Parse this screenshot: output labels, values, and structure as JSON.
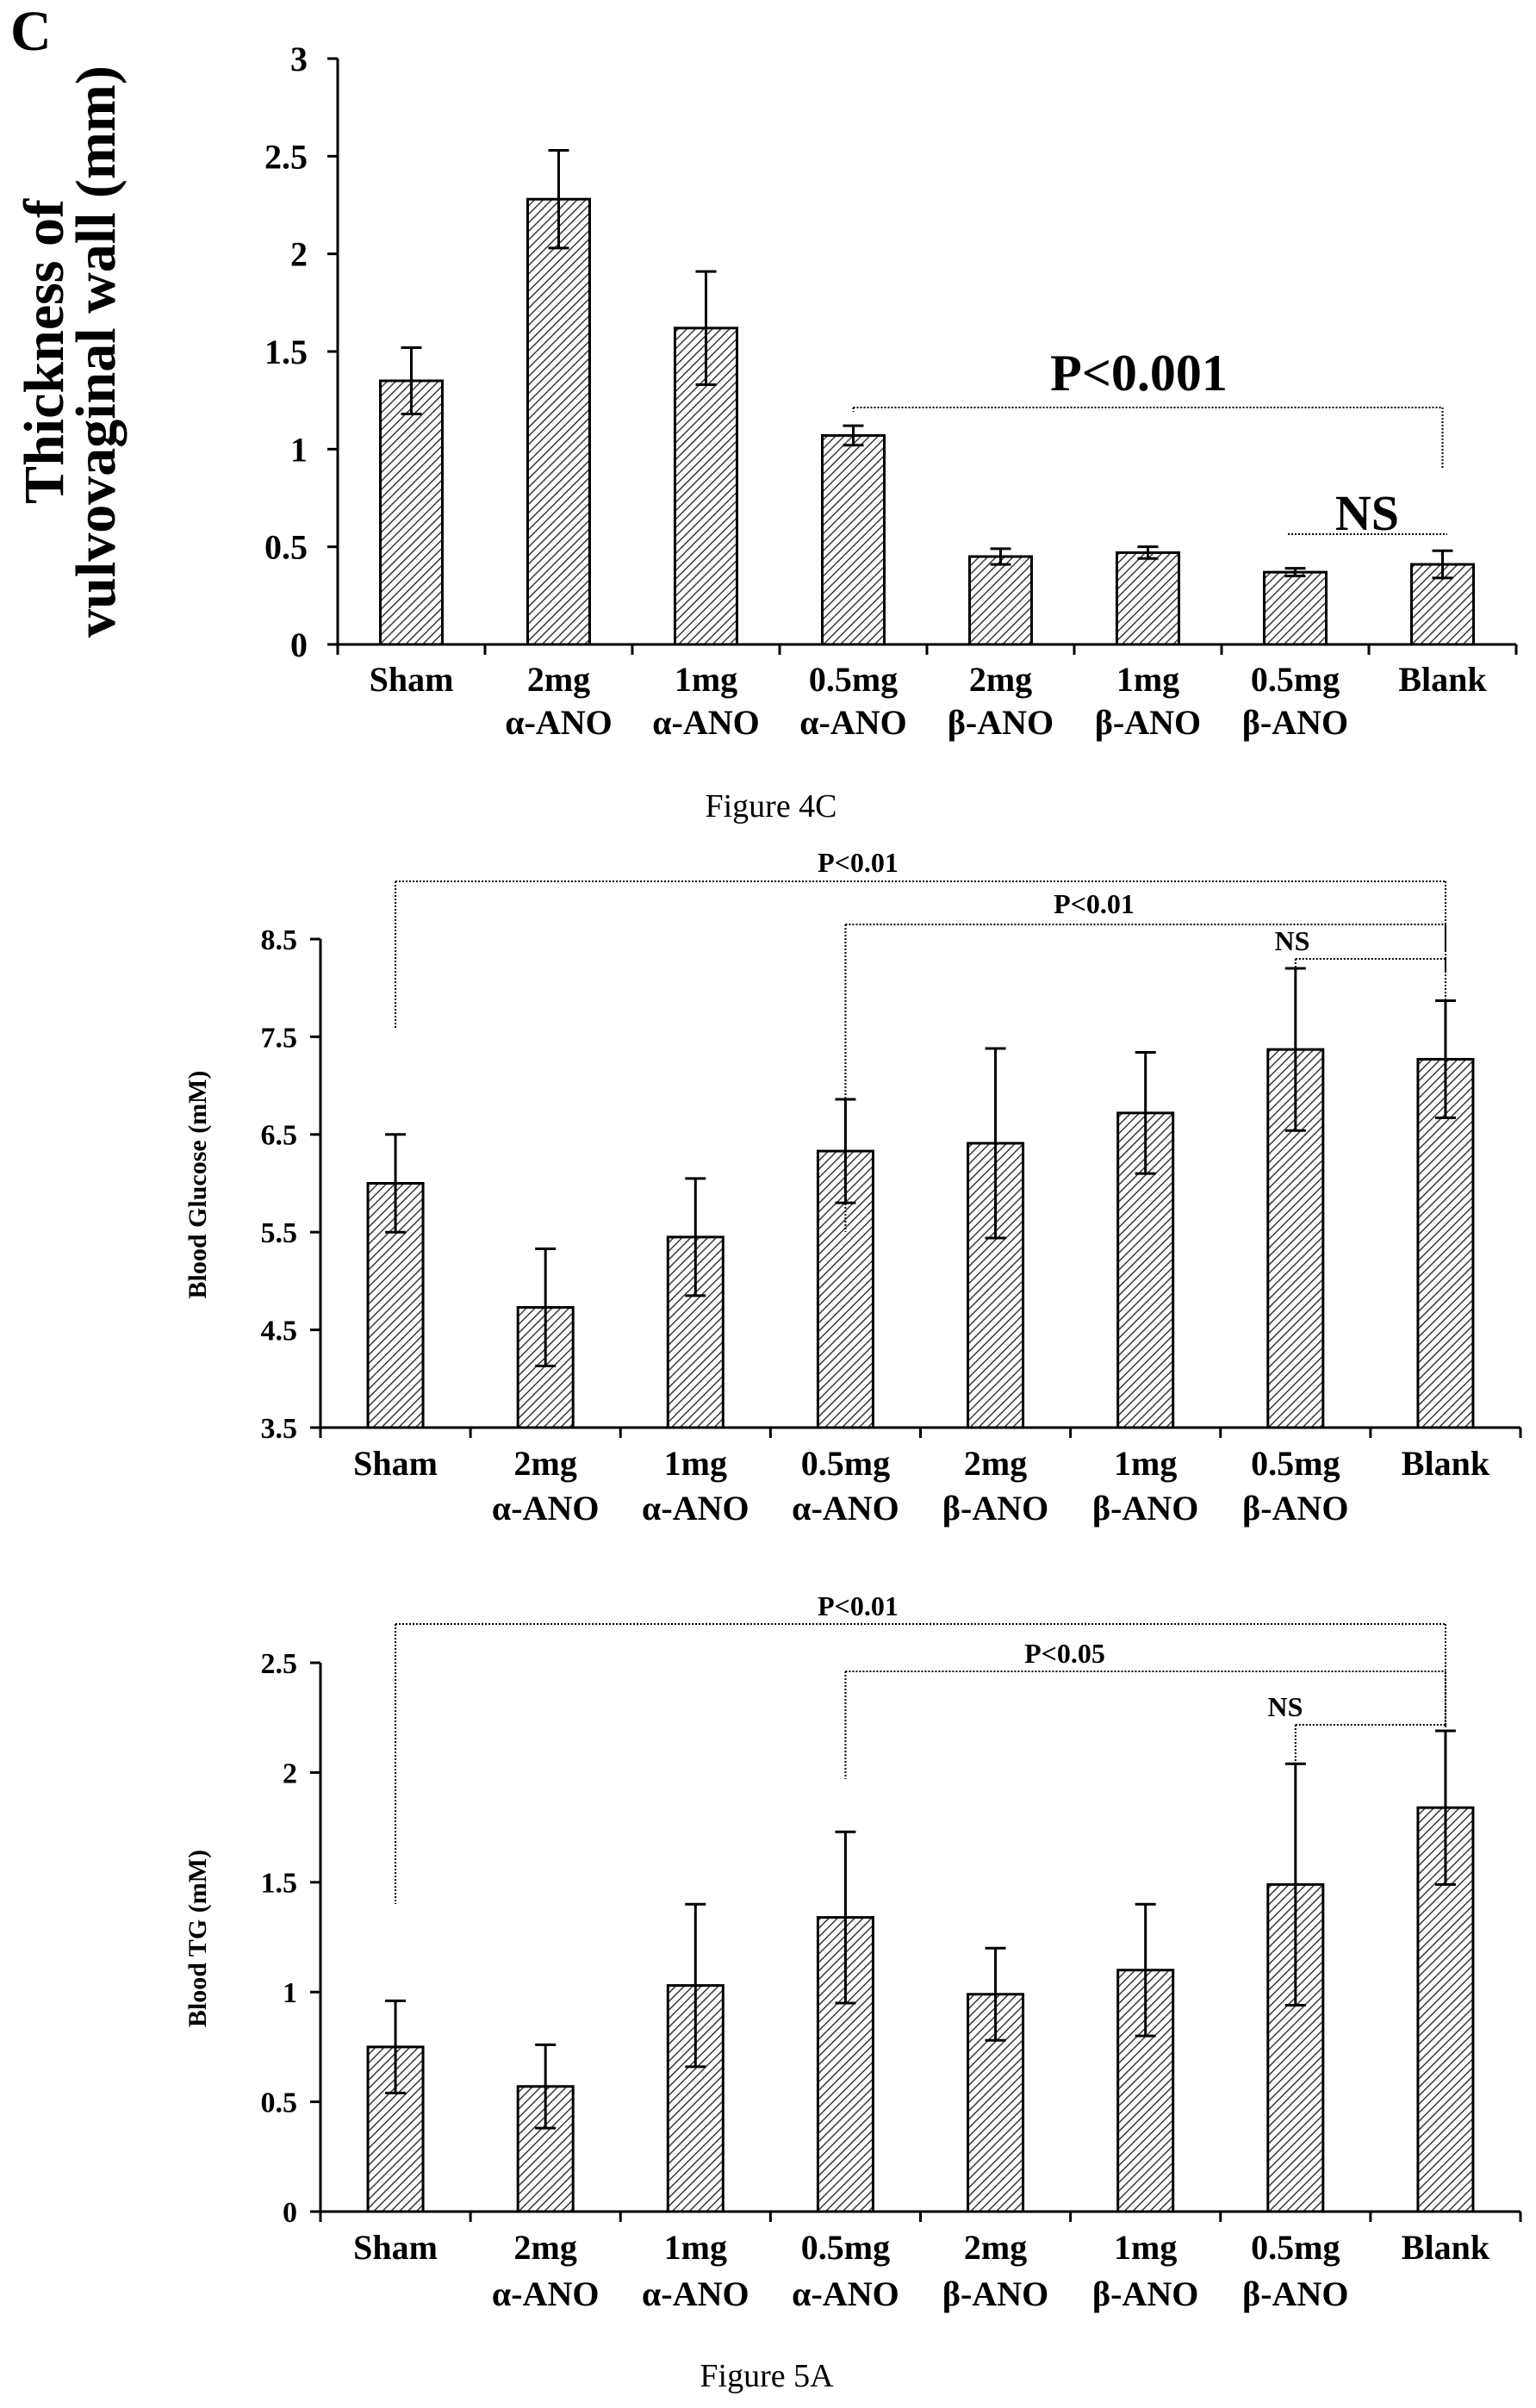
{
  "figure_labels": {
    "panel_letter": "C",
    "caption_4c": "Figure 4C",
    "caption_5a": "Figure 5A"
  },
  "colors": {
    "ink": "#000000",
    "hatch": "#3a3a3a",
    "background": "#ffffff"
  },
  "chart_data": [
    {
      "id": "chart1",
      "type": "bar",
      "title": "",
      "ylabel_line1": "Thickness of",
      "ylabel_line2": "vulvovaginal wall (mm)",
      "categories": [
        [
          "Sham",
          ""
        ],
        [
          "2mg",
          "α-ANO"
        ],
        [
          "1mg",
          "α-ANO"
        ],
        [
          "0.5mg",
          "α-ANO"
        ],
        [
          "2mg",
          "β-ANO"
        ],
        [
          "1mg",
          "β-ANO"
        ],
        [
          "0.5mg",
          "β-ANO"
        ],
        [
          "Blank",
          ""
        ]
      ],
      "values": [
        1.35,
        2.28,
        1.62,
        1.07,
        0.45,
        0.47,
        0.37,
        0.41
      ],
      "errors": [
        0.17,
        0.25,
        0.29,
        0.05,
        0.04,
        0.03,
        0.02,
        0.07
      ],
      "ylim": [
        0,
        3
      ],
      "yticks": [
        "0",
        "0.5",
        "1",
        "1.5",
        "2",
        "2.5",
        "3"
      ],
      "annotations": [
        {
          "label": "P<0.001",
          "from": 3,
          "to": 7
        },
        {
          "label": "NS",
          "from": 6,
          "to": 7
        }
      ]
    },
    {
      "id": "chart2",
      "type": "bar",
      "title": "",
      "ylabel": "Blood Glucose (mM)",
      "categories": [
        [
          "Sham",
          ""
        ],
        [
          "2mg",
          "α-ANO"
        ],
        [
          "1mg",
          "α-ANO"
        ],
        [
          "0.5mg",
          "α-ANO"
        ],
        [
          "2mg",
          "β-ANO"
        ],
        [
          "1mg",
          "β-ANO"
        ],
        [
          "0.5mg",
          "β-ANO"
        ],
        [
          "Blank",
          ""
        ]
      ],
      "values": [
        6.0,
        4.73,
        5.45,
        6.33,
        6.41,
        6.72,
        7.37,
        7.27
      ],
      "errors": [
        0.5,
        0.6,
        0.6,
        0.53,
        0.97,
        0.62,
        0.83,
        0.6
      ],
      "ylim": [
        3.5,
        8.5
      ],
      "yticks": [
        "3.5",
        "4.5",
        "5.5",
        "6.5",
        "7.5",
        "8.5"
      ],
      "annotations": [
        {
          "label": "P<0.01",
          "from": 0,
          "to": 7
        },
        {
          "label": "P<0.01",
          "from": 3,
          "to": 7
        },
        {
          "label": "NS",
          "from": 6,
          "to": 7
        }
      ]
    },
    {
      "id": "chart3",
      "type": "bar",
      "title": "",
      "ylabel": "Blood TG (mM)",
      "categories": [
        [
          "Sham",
          ""
        ],
        [
          "2mg",
          "α-ANO"
        ],
        [
          "1mg",
          "α-ANO"
        ],
        [
          "0.5mg",
          "α-ANO"
        ],
        [
          "2mg",
          "β-ANO"
        ],
        [
          "1mg",
          "β-ANO"
        ],
        [
          "0.5mg",
          "β-ANO"
        ],
        [
          "Blank",
          ""
        ]
      ],
      "values": [
        0.75,
        0.57,
        1.03,
        1.34,
        0.99,
        1.1,
        1.49,
        1.84
      ],
      "errors": [
        0.21,
        0.19,
        0.37,
        0.39,
        0.21,
        0.3,
        0.55,
        0.35
      ],
      "ylim": [
        0,
        2.5
      ],
      "yticks": [
        "0",
        "0.5",
        "1",
        "1.5",
        "2",
        "2.5"
      ],
      "annotations": [
        {
          "label": "P<0.01",
          "from": 0,
          "to": 7
        },
        {
          "label": "P<0.05",
          "from": 3,
          "to": 7
        },
        {
          "label": "NS",
          "from": 6,
          "to": 7
        }
      ]
    }
  ]
}
